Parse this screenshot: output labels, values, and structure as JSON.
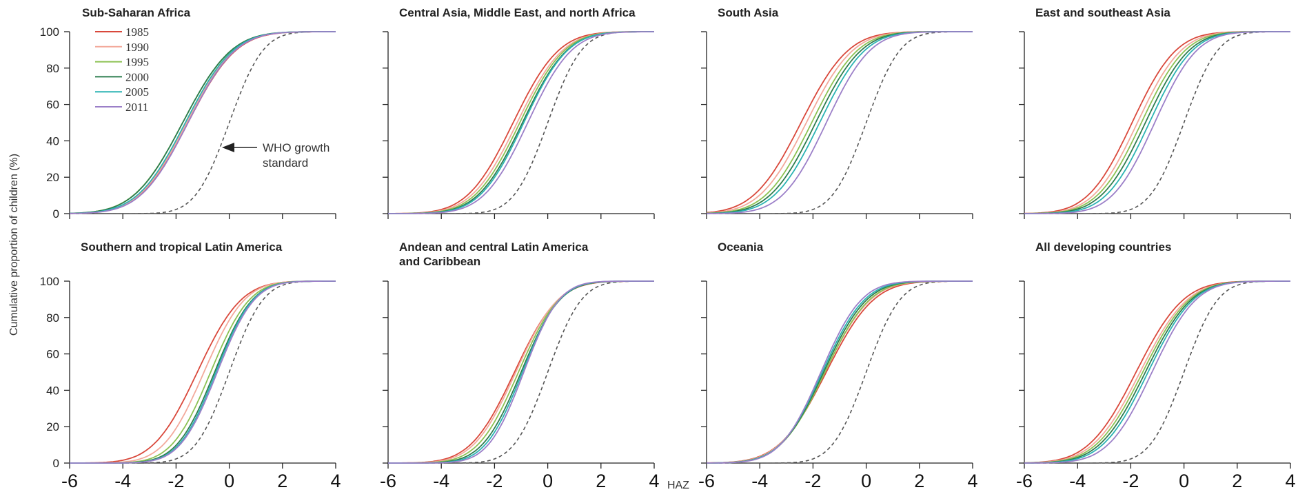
{
  "chart_data": {
    "type": "line",
    "ylabel": "Cumulative proportion of children (%)",
    "xlabel": "HAZ",
    "xlim": [
      -6,
      4
    ],
    "ylim": [
      0,
      100
    ],
    "xticks": [
      -6,
      -4,
      -2,
      0,
      2,
      4
    ],
    "yticks": [
      0,
      20,
      40,
      60,
      80,
      100
    ],
    "legend": {
      "location": "top-left of first panel",
      "entries": [
        {
          "label": "1985",
          "color": "#d9483b"
        },
        {
          "label": "1990",
          "color": "#f3a99b"
        },
        {
          "label": "1995",
          "color": "#8cc152"
        },
        {
          "label": "2000",
          "color": "#2e7d4f"
        },
        {
          "label": "2005",
          "color": "#2bb3b3"
        },
        {
          "label": "2011",
          "color": "#9b7fc8"
        }
      ]
    },
    "reference": {
      "label": "WHO growth standard",
      "mean": 0,
      "sd": 1,
      "style": "dashed",
      "color": "#555555"
    },
    "annotation": {
      "line1": "WHO growth",
      "line2": "standard"
    },
    "panels": [
      {
        "title_lines": [
          "Sub-Saharan Africa"
        ],
        "series": [
          {
            "name": "1985",
            "mean": -1.55,
            "sd": 1.42
          },
          {
            "name": "1990",
            "mean": -1.6,
            "sd": 1.42
          },
          {
            "name": "1995",
            "mean": -1.75,
            "sd": 1.45
          },
          {
            "name": "2000",
            "mean": -1.75,
            "sd": 1.44
          },
          {
            "name": "2005",
            "mean": -1.65,
            "sd": 1.42
          },
          {
            "name": "2011",
            "mean": -1.55,
            "sd": 1.4
          }
        ]
      },
      {
        "title_lines": [
          "Central Asia, Middle East, and north Africa"
        ],
        "series": [
          {
            "name": "1985",
            "mean": -1.3,
            "sd": 1.35
          },
          {
            "name": "1990",
            "mean": -1.15,
            "sd": 1.35
          },
          {
            "name": "1995",
            "mean": -1.05,
            "sd": 1.33
          },
          {
            "name": "2000",
            "mean": -0.95,
            "sd": 1.32
          },
          {
            "name": "2005",
            "mean": -0.9,
            "sd": 1.3
          },
          {
            "name": "2011",
            "mean": -0.75,
            "sd": 1.3
          }
        ]
      },
      {
        "title_lines": [
          "South Asia"
        ],
        "series": [
          {
            "name": "1985",
            "mean": -2.45,
            "sd": 1.4
          },
          {
            "name": "1990",
            "mean": -2.25,
            "sd": 1.38
          },
          {
            "name": "1995",
            "mean": -2.05,
            "sd": 1.36
          },
          {
            "name": "2000",
            "mean": -1.9,
            "sd": 1.35
          },
          {
            "name": "2005",
            "mean": -1.75,
            "sd": 1.34
          },
          {
            "name": "2011",
            "mean": -1.5,
            "sd": 1.3
          }
        ]
      },
      {
        "title_lines": [
          "East and southeast Asia"
        ],
        "series": [
          {
            "name": "1985",
            "mean": -1.95,
            "sd": 1.3
          },
          {
            "name": "1990",
            "mean": -1.75,
            "sd": 1.3
          },
          {
            "name": "1995",
            "mean": -1.6,
            "sd": 1.3
          },
          {
            "name": "2000",
            "mean": -1.45,
            "sd": 1.3
          },
          {
            "name": "2005",
            "mean": -1.3,
            "sd": 1.28
          },
          {
            "name": "2011",
            "mean": -1.1,
            "sd": 1.25
          }
        ]
      },
      {
        "title_lines": [
          "Southern and tropical Latin America"
        ],
        "series": [
          {
            "name": "1985",
            "mean": -1.2,
            "sd": 1.3
          },
          {
            "name": "1990",
            "mean": -0.95,
            "sd": 1.2
          },
          {
            "name": "1995",
            "mean": -0.7,
            "sd": 1.15
          },
          {
            "name": "2000",
            "mean": -0.55,
            "sd": 1.12
          },
          {
            "name": "2005",
            "mean": -0.5,
            "sd": 1.1
          },
          {
            "name": "2011",
            "mean": -0.45,
            "sd": 1.1
          }
        ]
      },
      {
        "title_lines": [
          "Andean and central Latin America",
          "and Caribbean"
        ],
        "series": [
          {
            "name": "1985",
            "mean": -1.25,
            "sd": 1.3
          },
          {
            "name": "1990",
            "mean": -1.2,
            "sd": 1.25
          },
          {
            "name": "1995",
            "mean": -1.1,
            "sd": 1.2
          },
          {
            "name": "2000",
            "mean": -1.0,
            "sd": 1.15
          },
          {
            "name": "2005",
            "mean": -0.95,
            "sd": 1.1
          },
          {
            "name": "2011",
            "mean": -0.9,
            "sd": 1.05
          }
        ]
      },
      {
        "title_lines": [
          "Oceania"
        ],
        "series": [
          {
            "name": "1985",
            "mean": -1.5,
            "sd": 1.4
          },
          {
            "name": "1990",
            "mean": -1.55,
            "sd": 1.35
          },
          {
            "name": "1995",
            "mean": -1.55,
            "sd": 1.32
          },
          {
            "name": "2000",
            "mean": -1.6,
            "sd": 1.28
          },
          {
            "name": "2005",
            "mean": -1.65,
            "sd": 1.25
          },
          {
            "name": "2011",
            "mean": -1.7,
            "sd": 1.2
          }
        ]
      },
      {
        "title_lines": [
          "All developing countries"
        ],
        "series": [
          {
            "name": "1985",
            "mean": -1.8,
            "sd": 1.4
          },
          {
            "name": "1990",
            "mean": -1.65,
            "sd": 1.4
          },
          {
            "name": "1995",
            "mean": -1.55,
            "sd": 1.38
          },
          {
            "name": "2000",
            "mean": -1.45,
            "sd": 1.36
          },
          {
            "name": "2005",
            "mean": -1.35,
            "sd": 1.34
          },
          {
            "name": "2011",
            "mean": -1.2,
            "sd": 1.3
          }
        ]
      }
    ]
  }
}
